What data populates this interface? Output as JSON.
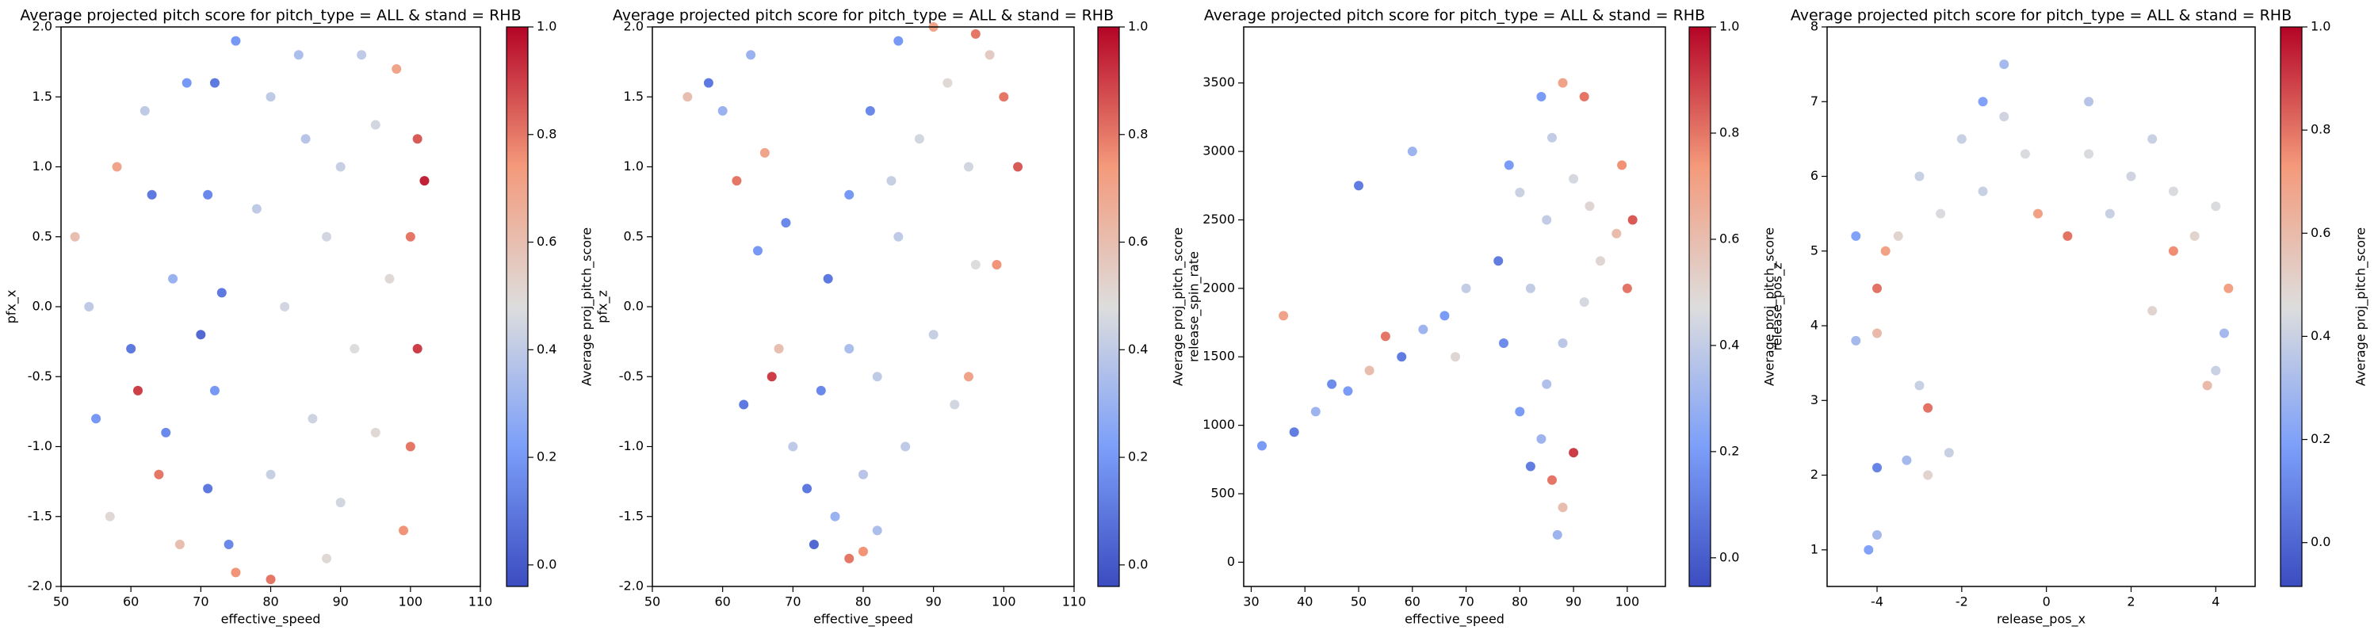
{
  "chart_data": [
    {
      "type": "scatter",
      "colormap": "coolwarm",
      "title": "Average projected pitch score for pitch_type = ALL & stand = RHB",
      "xlabel": "effective_speed",
      "ylabel": "pfx_x",
      "xlim": [
        50,
        110
      ],
      "xticks": [
        50,
        60,
        70,
        80,
        90,
        100,
        110
      ],
      "ylim": [
        -2,
        2
      ],
      "yticks": [
        {
          "value": -2,
          "label": "-2.0"
        },
        -1.5,
        {
          "value": -1,
          "label": "-1.0"
        },
        -0.5,
        {
          "value": 0,
          "label": "0.0"
        },
        0.5,
        {
          "value": 1,
          "label": "1.0"
        },
        1.5,
        {
          "value": 2,
          "label": "2.0"
        }
      ],
      "x": [
        80,
        85,
        90,
        95,
        88,
        82,
        92,
        86,
        80,
        90,
        95,
        84,
        93,
        78,
        97,
        88,
        72,
        71,
        73,
        72,
        71,
        74,
        75,
        70,
        101,
        100,
        101,
        100,
        99,
        98,
        102,
        75,
        80,
        52,
        55,
        58,
        60,
        62,
        64,
        66,
        57,
        63,
        67,
        68,
        61,
        54,
        65
      ],
      "y": [
        1.5,
        1.2,
        1.0,
        1.3,
        0.5,
        0.0,
        -0.3,
        -0.8,
        -1.2,
        -1.4,
        -0.9,
        1.8,
        1.8,
        0.7,
        0.2,
        -1.8,
        1.6,
        0.8,
        0.1,
        -0.6,
        -1.3,
        -1.7,
        1.9,
        -0.2,
        1.2,
        0.5,
        -0.3,
        -1.0,
        -1.6,
        1.7,
        0.9,
        -1.9,
        -1.95,
        0.5,
        -0.8,
        1.0,
        -0.3,
        1.4,
        -1.2,
        0.2,
        -1.5,
        0.8,
        -1.7,
        1.6,
        -0.6,
        0.0,
        -0.9
      ],
      "c": [
        0.4,
        0.38,
        0.42,
        0.45,
        0.45,
        0.45,
        0.48,
        0.44,
        0.42,
        0.45,
        0.5,
        0.35,
        0.4,
        0.4,
        0.5,
        0.5,
        0.1,
        0.15,
        0.1,
        0.2,
        0.1,
        0.15,
        0.2,
        0.05,
        0.85,
        0.8,
        0.9,
        0.8,
        0.75,
        0.7,
        0.95,
        0.75,
        0.8,
        0.6,
        0.2,
        0.7,
        0.1,
        0.4,
        0.8,
        0.3,
        0.5,
        0.1,
        0.6,
        0.2,
        0.9,
        0.4,
        0.15
      ],
      "colorbar": {
        "label": "Average proj_pitch_score",
        "clim": [
          -0.04,
          1.0
        ],
        "ticks": [
          {
            "value": 0,
            "label": "0.0"
          },
          0.2,
          0.4,
          0.6,
          0.8,
          {
            "value": 1,
            "label": "1.0"
          }
        ]
      }
    },
    {
      "type": "scatter",
      "colormap": "coolwarm",
      "title": "Average projected pitch score for pitch_type = ALL & stand = RHB",
      "xlabel": "effective_speed",
      "ylabel": "pfx_z",
      "xlim": [
        50,
        110
      ],
      "xticks": [
        50,
        60,
        70,
        80,
        90,
        100,
        110
      ],
      "ylim": [
        -2,
        2
      ],
      "yticks": [
        {
          "value": -2,
          "label": "-2.0"
        },
        -1.5,
        {
          "value": -1,
          "label": "-1.0"
        },
        -0.5,
        {
          "value": 0,
          "label": "0.0"
        },
        0.5,
        {
          "value": 1,
          "label": "1.0"
        },
        1.5,
        {
          "value": 2,
          "label": "2.0"
        }
      ],
      "x": [
        85,
        88,
        92,
        95,
        90,
        82,
        80,
        86,
        78,
        84,
        96,
        98,
        76,
        82,
        93,
        72,
        74,
        75,
        78,
        81,
        85,
        73,
        100,
        102,
        99,
        96,
        78,
        80,
        90,
        95,
        60,
        62,
        58,
        65,
        68,
        70,
        66,
        63,
        55,
        69,
        64,
        67
      ],
      "y": [
        0.5,
        1.2,
        1.6,
        1.0,
        -0.2,
        -0.5,
        -1.2,
        -1.0,
        -0.3,
        0.9,
        0.3,
        1.8,
        -1.5,
        -1.6,
        -0.7,
        -1.3,
        -0.6,
        0.2,
        0.8,
        1.4,
        1.9,
        -1.7,
        1.5,
        1.0,
        0.3,
        1.95,
        -1.8,
        -1.75,
        2.0,
        -0.5,
        1.4,
        0.9,
        1.6,
        0.4,
        -0.3,
        -1.0,
        1.1,
        -0.7,
        1.5,
        0.6,
        1.8,
        -0.5
      ],
      "c": [
        0.4,
        0.45,
        0.5,
        0.45,
        0.42,
        0.4,
        0.38,
        0.4,
        0.35,
        0.42,
        0.48,
        0.55,
        0.3,
        0.35,
        0.45,
        0.1,
        0.15,
        0.1,
        0.2,
        0.15,
        0.2,
        0.05,
        0.8,
        0.85,
        0.75,
        0.8,
        0.8,
        0.75,
        0.7,
        0.7,
        0.3,
        0.8,
        0.1,
        0.2,
        0.6,
        0.4,
        0.7,
        0.1,
        0.6,
        0.15,
        0.3,
        0.9
      ],
      "colorbar": {
        "label": "Average proj_pitch_score",
        "clim": [
          -0.04,
          1.0
        ],
        "ticks": [
          {
            "value": 0,
            "label": "0.0"
          },
          0.2,
          0.4,
          0.6,
          0.8,
          {
            "value": 1,
            "label": "1.0"
          }
        ]
      }
    },
    {
      "type": "scatter",
      "colormap": "coolwarm",
      "title": "Average projected pitch score for pitch_type = ALL & stand = RHB",
      "xlabel": "effective_speed",
      "ylabel": "release_spin_rate",
      "xlim": [
        28.6,
        107.1
      ],
      "xticks": [
        30,
        40,
        50,
        60,
        70,
        80,
        90,
        100
      ],
      "ylim": [
        -177,
        3909
      ],
      "yticks": [
        0,
        500,
        1000,
        1500,
        2000,
        2500,
        3000,
        3500
      ],
      "x": [
        85,
        90,
        95,
        82,
        88,
        93,
        86,
        80,
        92,
        85,
        98,
        101,
        100,
        99,
        88,
        92,
        76,
        77,
        78,
        84,
        84,
        86,
        82,
        88,
        80,
        90,
        87,
        32,
        38,
        42,
        48,
        52,
        58,
        62,
        66,
        70,
        45,
        55,
        68,
        60,
        50,
        36
      ],
      "y": [
        2500,
        2800,
        2200,
        2000,
        1600,
        2600,
        3100,
        2700,
        1900,
        1300,
        2400,
        2500,
        2000,
        2900,
        3500,
        3400,
        2200,
        1600,
        2900,
        3400,
        900,
        600,
        700,
        400,
        1100,
        800,
        200,
        850,
        950,
        1100,
        1250,
        1400,
        1500,
        1700,
        1800,
        2000,
        1300,
        1650,
        1500,
        3000,
        2750,
        1800
      ],
      "c": [
        0.4,
        0.45,
        0.5,
        0.4,
        0.38,
        0.5,
        0.4,
        0.42,
        0.45,
        0.35,
        0.6,
        0.85,
        0.8,
        0.75,
        0.7,
        0.8,
        0.1,
        0.15,
        0.2,
        0.2,
        0.3,
        0.8,
        0.1,
        0.6,
        0.2,
        0.9,
        0.3,
        0.2,
        0.1,
        0.3,
        0.2,
        0.6,
        0.1,
        0.3,
        0.2,
        0.4,
        0.15,
        0.8,
        0.5,
        0.3,
        0.1,
        0.7
      ],
      "colorbar": {
        "label": "Average proj_pitch_score",
        "clim": [
          -0.054,
          1.0
        ],
        "ticks": [
          {
            "value": 0,
            "label": "0.0"
          },
          0.2,
          0.4,
          0.6,
          0.8,
          {
            "value": 1,
            "label": "1.0"
          }
        ]
      }
    },
    {
      "type": "scatter",
      "colormap": "coolwarm",
      "title": "Average projected pitch score for pitch_type = ALL & stand = RHB",
      "xlabel": "release_pos_x",
      "ylabel": "release_pos_z",
      "xlim": [
        -5.18,
        4.93
      ],
      "xticks": [
        -4,
        -2,
        0,
        2,
        4
      ],
      "ylim": [
        0.51,
        8.0
      ],
      "yticks": [
        1,
        2,
        3,
        4,
        5,
        6,
        7,
        8
      ],
      "x": [
        -3,
        -2,
        -1,
        -2.5,
        -1.5,
        -3.5,
        -0.5,
        1,
        2,
        3,
        1.5,
        2.5,
        3.5,
        4,
        1,
        -1,
        -4,
        -3.8,
        3,
        4.3,
        -0.2,
        0.5,
        -4.5,
        -4,
        -3,
        -2.8,
        -3.3,
        -2.8,
        -4.0,
        -4,
        -4.2,
        4,
        3.8,
        2.5,
        4.2,
        -2.3,
        -4.5,
        -1.5
      ],
      "y": [
        6.0,
        6.5,
        6.8,
        5.5,
        5.8,
        5.2,
        6.3,
        6.3,
        6.0,
        5.8,
        5.5,
        6.5,
        5.2,
        5.6,
        7.0,
        7.5,
        4.5,
        5.0,
        5.0,
        4.5,
        5.5,
        5.2,
        3.8,
        3.9,
        3.2,
        2.9,
        2.2,
        2.0,
        2.1,
        1.2,
        1.0,
        3.4,
        3.2,
        4.2,
        3.9,
        2.3,
        5.2,
        7.0
      ],
      "c": [
        0.4,
        0.4,
        0.42,
        0.45,
        0.4,
        0.5,
        0.45,
        0.45,
        0.42,
        0.45,
        0.4,
        0.4,
        0.5,
        0.45,
        0.35,
        0.3,
        0.8,
        0.7,
        0.75,
        0.7,
        0.7,
        0.8,
        0.3,
        0.6,
        0.4,
        0.8,
        0.3,
        0.5,
        0.1,
        0.3,
        0.2,
        0.4,
        0.6,
        0.5,
        0.3,
        0.4,
        0.2,
        0.2
      ],
      "colorbar": {
        "label": "Average proj_pitch_score",
        "clim": [
          -0.085,
          1.0
        ],
        "ticks": [
          {
            "value": 0,
            "label": "0.0"
          },
          0.2,
          0.4,
          0.6,
          0.8,
          {
            "value": 1,
            "label": "1.0"
          }
        ]
      }
    }
  ]
}
